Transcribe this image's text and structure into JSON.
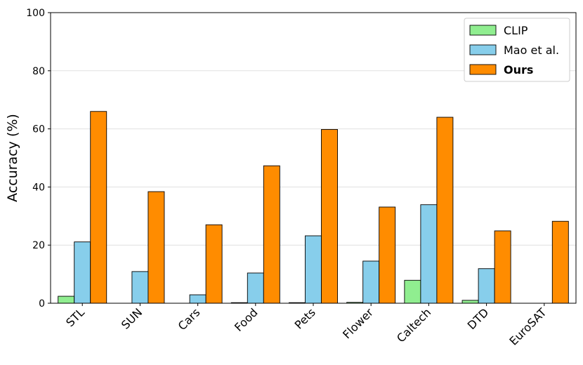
{
  "chart_data": {
    "type": "bar",
    "title": "",
    "xlabel": "",
    "ylabel": "Accuracy (%)",
    "ylim": [
      0,
      100
    ],
    "yticks": [
      0,
      20,
      40,
      60,
      80,
      100
    ],
    "grid": "horizontal",
    "legend_position": "top-right",
    "categories": [
      "STL",
      "SUN",
      "Cars",
      "Food",
      "Pets",
      "Flower",
      "Caltech",
      "DTD",
      "EuroSAT"
    ],
    "series": [
      {
        "name": "CLIP",
        "color": "#90ee90",
        "bold": false,
        "values": [
          2.4,
          0,
          0,
          0.2,
          0.2,
          0.3,
          7.9,
          1.0,
          0
        ]
      },
      {
        "name": "Mao et al.",
        "color": "#87ceeb",
        "bold": false,
        "values": [
          21.1,
          10.9,
          2.9,
          10.4,
          23.2,
          14.5,
          33.9,
          11.9,
          0
        ]
      },
      {
        "name": "Ours",
        "color": "#ff8c00",
        "bold": true,
        "values": [
          66.0,
          38.4,
          27.0,
          47.3,
          59.8,
          33.1,
          64.0,
          24.9,
          28.2
        ]
      }
    ]
  }
}
